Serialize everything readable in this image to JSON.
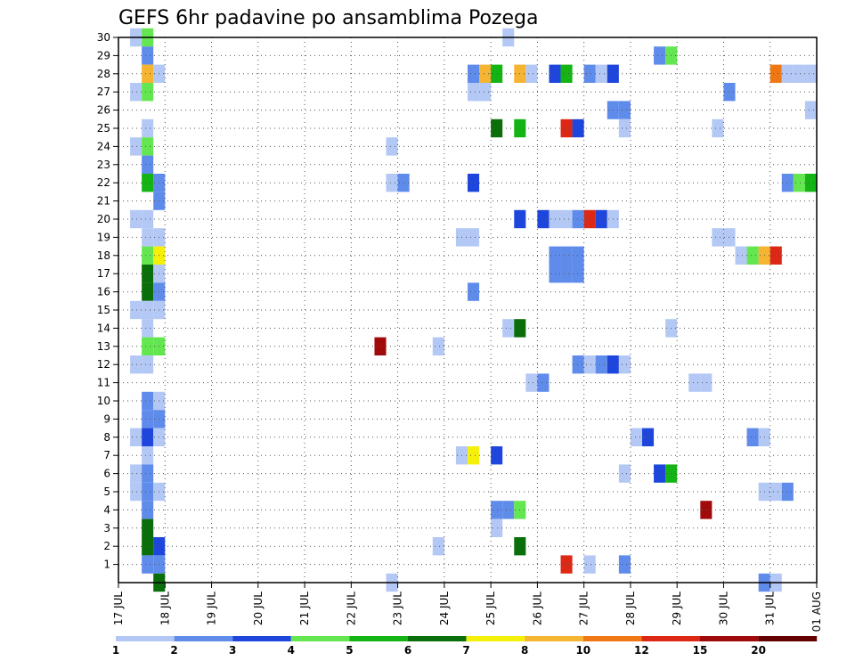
{
  "chart_data": {
    "type": "heatmap",
    "title": "GEFS 6hr padavine po ansamblima Pozega",
    "x_tick_labels": [
      "17 JUL",
      "18 JUL",
      "19 JUL",
      "20 JUL",
      "21 JUL",
      "22 JUL",
      "23 JUL",
      "24 JUL",
      "25 JUL",
      "26 JUL",
      "27 JUL",
      "28 JUL",
      "29 JUL",
      "30 JUL",
      "31 JUL",
      "01 AUG"
    ],
    "y_tick_labels": [
      "1",
      "2",
      "3",
      "4",
      "5",
      "6",
      "7",
      "8",
      "9",
      "10",
      "11",
      "12",
      "13",
      "14",
      "15",
      "16",
      "17",
      "18",
      "19",
      "20",
      "21",
      "22",
      "23",
      "24",
      "25",
      "26",
      "27",
      "28",
      "29",
      "30"
    ],
    "x_unit": "6-hour step",
    "xlim": [
      0,
      60
    ],
    "ylim": [
      0,
      30
    ],
    "grid": true,
    "legend_position": "bottom",
    "color_scale": {
      "labels": [
        "1",
        "2",
        "3",
        "4",
        "5",
        "6",
        "7",
        "8",
        "10",
        "12",
        "15",
        "20"
      ],
      "colors": [
        "#b4c8f5",
        "#5f8ceb",
        "#1e46dc",
        "#64e650",
        "#14b414",
        "#0a6e0a",
        "#f5f00a",
        "#f5b432",
        "#f07814",
        "#dc2814",
        "#a00a0a",
        "#640000"
      ]
    },
    "cells": [
      {
        "member": 30,
        "step": 1,
        "c": 0
      },
      {
        "member": 30,
        "step": 2,
        "c": 3
      },
      {
        "member": 30,
        "step": 33,
        "c": 0
      },
      {
        "member": 29,
        "step": 2,
        "c": 1
      },
      {
        "member": 29,
        "step": 46,
        "c": 1
      },
      {
        "member": 29,
        "step": 47,
        "c": 3
      },
      {
        "member": 28,
        "step": 2,
        "c": 7
      },
      {
        "member": 28,
        "step": 3,
        "c": 0
      },
      {
        "member": 28,
        "step": 30,
        "c": 1
      },
      {
        "member": 28,
        "step": 31,
        "c": 7
      },
      {
        "member": 28,
        "step": 32,
        "c": 4
      },
      {
        "member": 28,
        "step": 34,
        "c": 7
      },
      {
        "member": 28,
        "step": 35,
        "c": 0
      },
      {
        "member": 28,
        "step": 37,
        "c": 2
      },
      {
        "member": 28,
        "step": 38,
        "c": 4
      },
      {
        "member": 28,
        "step": 40,
        "c": 1
      },
      {
        "member": 28,
        "step": 41,
        "c": 0
      },
      {
        "member": 28,
        "step": 42,
        "c": 2
      },
      {
        "member": 28,
        "step": 56,
        "c": 8
      },
      {
        "member": 28,
        "step": 57,
        "c": 0
      },
      {
        "member": 28,
        "step": 58,
        "c": 0
      },
      {
        "member": 28,
        "step": 59,
        "c": 0
      },
      {
        "member": 27,
        "step": 1,
        "c": 0
      },
      {
        "member": 27,
        "step": 2,
        "c": 3
      },
      {
        "member": 27,
        "step": 30,
        "c": 0
      },
      {
        "member": 27,
        "step": 31,
        "c": 0
      },
      {
        "member": 27,
        "step": 52,
        "c": 1
      },
      {
        "member": 26,
        "step": 42,
        "c": 1
      },
      {
        "member": 26,
        "step": 43,
        "c": 1
      },
      {
        "member": 26,
        "step": 59,
        "c": 0
      },
      {
        "member": 25,
        "step": 2,
        "c": 0
      },
      {
        "member": 25,
        "step": 32,
        "c": 5
      },
      {
        "member": 25,
        "step": 34,
        "c": 4
      },
      {
        "member": 25,
        "step": 38,
        "c": 9
      },
      {
        "member": 25,
        "step": 39,
        "c": 2
      },
      {
        "member": 25,
        "step": 43,
        "c": 0
      },
      {
        "member": 25,
        "step": 51,
        "c": 0
      },
      {
        "member": 24,
        "step": 1,
        "c": 0
      },
      {
        "member": 24,
        "step": 2,
        "c": 3
      },
      {
        "member": 24,
        "step": 23,
        "c": 0
      },
      {
        "member": 23,
        "step": 2,
        "c": 1
      },
      {
        "member": 22,
        "step": 2,
        "c": 4
      },
      {
        "member": 22,
        "step": 3,
        "c": 1
      },
      {
        "member": 22,
        "step": 23,
        "c": 0
      },
      {
        "member": 22,
        "step": 24,
        "c": 1
      },
      {
        "member": 22,
        "step": 30,
        "c": 2
      },
      {
        "member": 22,
        "step": 57,
        "c": 1
      },
      {
        "member": 22,
        "step": 58,
        "c": 3
      },
      {
        "member": 22,
        "step": 59,
        "c": 4
      },
      {
        "member": 21,
        "step": 3,
        "c": 1
      },
      {
        "member": 20,
        "step": 1,
        "c": 0
      },
      {
        "member": 20,
        "step": 2,
        "c": 0
      },
      {
        "member": 20,
        "step": 34,
        "c": 2
      },
      {
        "member": 20,
        "step": 36,
        "c": 2
      },
      {
        "member": 20,
        "step": 37,
        "c": 0
      },
      {
        "member": 20,
        "step": 38,
        "c": 0
      },
      {
        "member": 20,
        "step": 39,
        "c": 1
      },
      {
        "member": 20,
        "step": 40,
        "c": 9
      },
      {
        "member": 20,
        "step": 41,
        "c": 2
      },
      {
        "member": 20,
        "step": 42,
        "c": 0
      },
      {
        "member": 19,
        "step": 2,
        "c": 0
      },
      {
        "member": 19,
        "step": 3,
        "c": 0
      },
      {
        "member": 19,
        "step": 29,
        "c": 0
      },
      {
        "member": 19,
        "step": 30,
        "c": 0
      },
      {
        "member": 19,
        "step": 51,
        "c": 0
      },
      {
        "member": 19,
        "step": 52,
        "c": 0
      },
      {
        "member": 18,
        "step": 2,
        "c": 3
      },
      {
        "member": 18,
        "step": 3,
        "c": 6
      },
      {
        "member": 18,
        "step": 37,
        "c": 1
      },
      {
        "member": 18,
        "step": 38,
        "c": 1
      },
      {
        "member": 18,
        "step": 39,
        "c": 1
      },
      {
        "member": 18,
        "step": 53,
        "c": 0
      },
      {
        "member": 18,
        "step": 54,
        "c": 3
      },
      {
        "member": 18,
        "step": 55,
        "c": 7
      },
      {
        "member": 18,
        "step": 56,
        "c": 9
      },
      {
        "member": 17,
        "step": 2,
        "c": 5
      },
      {
        "member": 17,
        "step": 3,
        "c": 0
      },
      {
        "member": 17,
        "step": 37,
        "c": 1
      },
      {
        "member": 17,
        "step": 38,
        "c": 1
      },
      {
        "member": 17,
        "step": 39,
        "c": 1
      },
      {
        "member": 16,
        "step": 2,
        "c": 5
      },
      {
        "member": 16,
        "step": 3,
        "c": 1
      },
      {
        "member": 16,
        "step": 30,
        "c": 1
      },
      {
        "member": 15,
        "step": 1,
        "c": 0
      },
      {
        "member": 15,
        "step": 2,
        "c": 0
      },
      {
        "member": 15,
        "step": 3,
        "c": 0
      },
      {
        "member": 14,
        "step": 2,
        "c": 0
      },
      {
        "member": 14,
        "step": 33,
        "c": 0
      },
      {
        "member": 14,
        "step": 34,
        "c": 5
      },
      {
        "member": 14,
        "step": 47,
        "c": 0
      },
      {
        "member": 13,
        "step": 2,
        "c": 3
      },
      {
        "member": 13,
        "step": 3,
        "c": 3
      },
      {
        "member": 13,
        "step": 22,
        "c": 10
      },
      {
        "member": 13,
        "step": 27,
        "c": 0
      },
      {
        "member": 12,
        "step": 1,
        "c": 0
      },
      {
        "member": 12,
        "step": 2,
        "c": 0
      },
      {
        "member": 12,
        "step": 39,
        "c": 1
      },
      {
        "member": 12,
        "step": 40,
        "c": 0
      },
      {
        "member": 12,
        "step": 41,
        "c": 1
      },
      {
        "member": 12,
        "step": 42,
        "c": 2
      },
      {
        "member": 12,
        "step": 43,
        "c": 0
      },
      {
        "member": 11,
        "step": 35,
        "c": 0
      },
      {
        "member": 11,
        "step": 36,
        "c": 1
      },
      {
        "member": 11,
        "step": 49,
        "c": 0
      },
      {
        "member": 11,
        "step": 50,
        "c": 0
      },
      {
        "member": 10,
        "step": 2,
        "c": 1
      },
      {
        "member": 10,
        "step": 3,
        "c": 0
      },
      {
        "member": 9,
        "step": 2,
        "c": 1
      },
      {
        "member": 9,
        "step": 3,
        "c": 1
      },
      {
        "member": 8,
        "step": 1,
        "c": 0
      },
      {
        "member": 8,
        "step": 2,
        "c": 2
      },
      {
        "member": 8,
        "step": 3,
        "c": 0
      },
      {
        "member": 8,
        "step": 44,
        "c": 0
      },
      {
        "member": 8,
        "step": 45,
        "c": 2
      },
      {
        "member": 8,
        "step": 54,
        "c": 1
      },
      {
        "member": 8,
        "step": 55,
        "c": 0
      },
      {
        "member": 7,
        "step": 2,
        "c": 0
      },
      {
        "member": 7,
        "step": 29,
        "c": 0
      },
      {
        "member": 7,
        "step": 30,
        "c": 6
      },
      {
        "member": 7,
        "step": 32,
        "c": 2
      },
      {
        "member": 6,
        "step": 1,
        "c": 0
      },
      {
        "member": 6,
        "step": 2,
        "c": 1
      },
      {
        "member": 6,
        "step": 43,
        "c": 0
      },
      {
        "member": 6,
        "step": 46,
        "c": 2
      },
      {
        "member": 6,
        "step": 47,
        "c": 4
      },
      {
        "member": 5,
        "step": 1,
        "c": 0
      },
      {
        "member": 5,
        "step": 2,
        "c": 1
      },
      {
        "member": 5,
        "step": 3,
        "c": 0
      },
      {
        "member": 5,
        "step": 55,
        "c": 0
      },
      {
        "member": 5,
        "step": 56,
        "c": 0
      },
      {
        "member": 5,
        "step": 57,
        "c": 1
      },
      {
        "member": 4,
        "step": 2,
        "c": 1
      },
      {
        "member": 4,
        "step": 32,
        "c": 1
      },
      {
        "member": 4,
        "step": 33,
        "c": 1
      },
      {
        "member": 4,
        "step": 34,
        "c": 3
      },
      {
        "member": 4,
        "step": 50,
        "c": 10
      },
      {
        "member": 3,
        "step": 2,
        "c": 5
      },
      {
        "member": 3,
        "step": 32,
        "c": 0
      },
      {
        "member": 2,
        "step": 2,
        "c": 5
      },
      {
        "member": 2,
        "step": 3,
        "c": 2
      },
      {
        "member": 2,
        "step": 27,
        "c": 0
      },
      {
        "member": 2,
        "step": 34,
        "c": 5
      },
      {
        "member": 1,
        "step": 2,
        "c": 1
      },
      {
        "member": 1,
        "step": 3,
        "c": 1
      },
      {
        "member": 1,
        "step": 38,
        "c": 9
      },
      {
        "member": 1,
        "step": 40,
        "c": 0
      },
      {
        "member": 1,
        "step": 43,
        "c": 1
      },
      {
        "member": 0,
        "step": 3,
        "c": 5
      },
      {
        "member": 0,
        "step": 23,
        "c": 0
      },
      {
        "member": 0,
        "step": 55,
        "c": 1
      },
      {
        "member": 0,
        "step": 56,
        "c": 0
      }
    ]
  }
}
